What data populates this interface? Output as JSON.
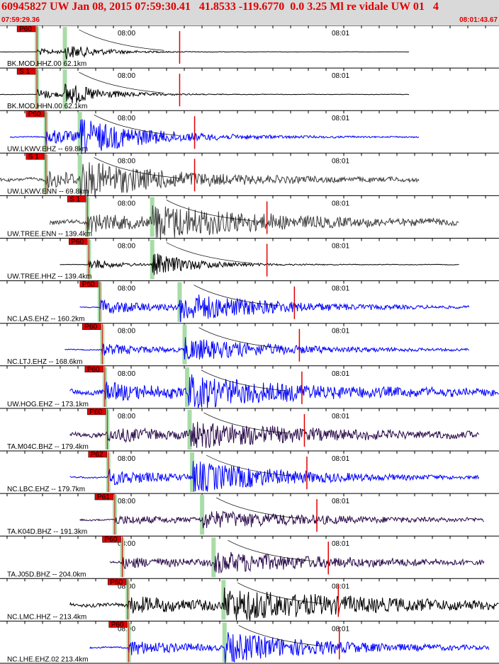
{
  "header": {
    "title": "60945827 UW Jan 08, 2015 07:59:30.41   41.8533 -119.6770  0.0 3.25 Ml re vidale UW 01   4",
    "start_time": "07:59:29.36",
    "end_time": "08:01:43.67"
  },
  "time_ticks": [
    "08:00",
    "08:01"
  ],
  "colors": {
    "accent": "#e00000",
    "blue": "#0000ff",
    "black": "#000000",
    "gray": "#404040",
    "purple": "#2a0a4a",
    "green_band": "#a8dca8"
  },
  "traces": [
    {
      "label": "BK.MOD.HHZ.00 62.1km",
      "pick": "P60",
      "color": "black",
      "start": 0.0,
      "end": 0.82,
      "p": 0.074,
      "s": 0.13,
      "amp": 0.35,
      "env": 0.05,
      "noise": 0.02
    },
    {
      "label": "BK.MOD.HHN.00 62.1km",
      "pick": "S 1",
      "color": "black",
      "start": 0.0,
      "end": 0.82,
      "p": 0.074,
      "s": 0.13,
      "amp": 0.55,
      "env": 0.05,
      "noise": 0.02
    },
    {
      "label": "UW.LKWV.EHZ -- 69.8km",
      "pick": "P60",
      "color": "blue",
      "start": 0.02,
      "end": 0.84,
      "p": 0.092,
      "s": 0.16,
      "amp": 0.8,
      "env": 0.12,
      "noise": 0.03
    },
    {
      "label": "UW.LKWV.ENN -- 69.8km",
      "pick": "S 1",
      "color": "gray",
      "start": 0.0,
      "end": 0.84,
      "p": 0.092,
      "s": 0.16,
      "amp": 0.75,
      "env": 0.18,
      "noise": 0.1
    },
    {
      "label": "UW.TREE.ENN -- 139.4km",
      "pick": "S 1",
      "color": "gray",
      "start": 0.1,
      "end": 0.92,
      "p": 0.175,
      "s": 0.305,
      "amp": 0.8,
      "env": 0.2,
      "noise": 0.12
    },
    {
      "label": "UW.TREE.HHZ -- 139.4km",
      "pick": "P60",
      "color": "black",
      "start": 0.12,
      "end": 0.92,
      "p": 0.178,
      "s": 0.305,
      "amp": 0.6,
      "env": 0.06,
      "noise": 0.02
    },
    {
      "label": "NC.LAS.EHZ -- 160.2km",
      "pick": "P60",
      "color": "blue",
      "start": 0.16,
      "end": 0.94,
      "p": 0.2,
      "s": 0.36,
      "amp": 0.7,
      "env": 0.18,
      "noise": 0.03
    },
    {
      "label": "NC.LTJ.EHZ -- 168.6km",
      "pick": "P60",
      "color": "blue",
      "start": 0.13,
      "end": 0.94,
      "p": 0.205,
      "s": 0.37,
      "amp": 0.55,
      "env": 0.18,
      "noise": 0.04
    },
    {
      "label": "UW.HOG.EHZ -- 173.1km",
      "pick": "P60",
      "color": "blue",
      "start": 0.14,
      "end": 1.0,
      "p": 0.21,
      "s": 0.375,
      "amp": 0.7,
      "env": 0.2,
      "noise": 0.18
    },
    {
      "label": "TA.M04C.BHZ -- 179.4km",
      "pick": "P60",
      "color": "purple",
      "start": 0.14,
      "end": 0.96,
      "p": 0.215,
      "s": 0.38,
      "amp": 0.55,
      "env": 0.22,
      "noise": 0.2
    },
    {
      "label": "NC.LBC.EHZ -- 179.7km",
      "pick": "P62",
      "color": "blue",
      "start": 0.14,
      "end": 0.96,
      "p": 0.217,
      "s": 0.385,
      "amp": 0.75,
      "env": 0.18,
      "noise": 0.05
    },
    {
      "label": "TA.K04D.BHZ -- 191.3km",
      "pick": "P61",
      "color": "purple",
      "start": 0.16,
      "end": 0.97,
      "p": 0.23,
      "s": 0.405,
      "amp": 0.4,
      "env": 0.25,
      "noise": 0.1
    },
    {
      "label": "TA.J05D.BHZ -- 204.0km",
      "pick": "P60",
      "color": "purple",
      "start": 0.22,
      "end": 0.97,
      "p": 0.245,
      "s": 0.428,
      "amp": 0.45,
      "env": 0.25,
      "noise": 0.15
    },
    {
      "label": "NC.LMC.HHZ -- 213.4km",
      "pick": "P60",
      "color": "black",
      "start": 0.14,
      "end": 1.0,
      "p": 0.256,
      "s": 0.448,
      "amp": 0.7,
      "env": 0.3,
      "noise": 0.12
    },
    {
      "label": "NC.LHE.EHZ.02 213.4km",
      "pick": "P60",
      "color": "blue",
      "start": 0.18,
      "end": 0.98,
      "p": 0.258,
      "s": 0.45,
      "amp": 0.7,
      "env": 0.2,
      "noise": 0.05
    }
  ]
}
